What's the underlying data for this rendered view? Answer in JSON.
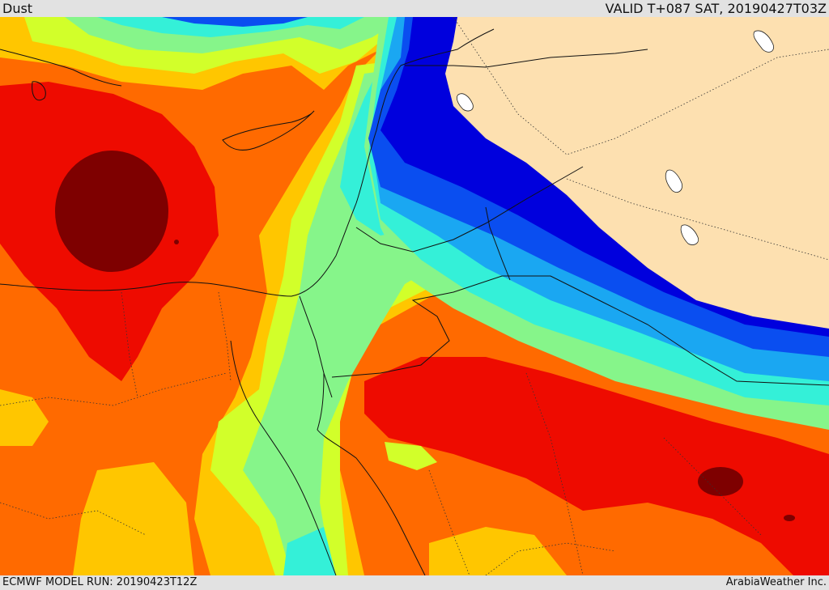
{
  "header": {
    "title": "Dust",
    "valid": "VALID T+087 SAT, 20190427T03Z"
  },
  "footer": {
    "model_run": "ECMWF MODEL RUN: 20190423T12Z",
    "credit": "ArabiaWeather Inc."
  },
  "palette": {
    "land_outside": "#fde0b0",
    "level_0": "#0000dd",
    "level_1": "#0a4ef0",
    "level_2": "#1aa7f2",
    "level_3": "#34f0d8",
    "level_4": "#86f58a",
    "level_5": "#d2ff2a",
    "level_6": "#ffc600",
    "level_7": "#ff6a00",
    "level_8": "#ee0b00",
    "level_9": "#7e0000",
    "lake": "#ffffff",
    "border_line": "#333333"
  }
}
